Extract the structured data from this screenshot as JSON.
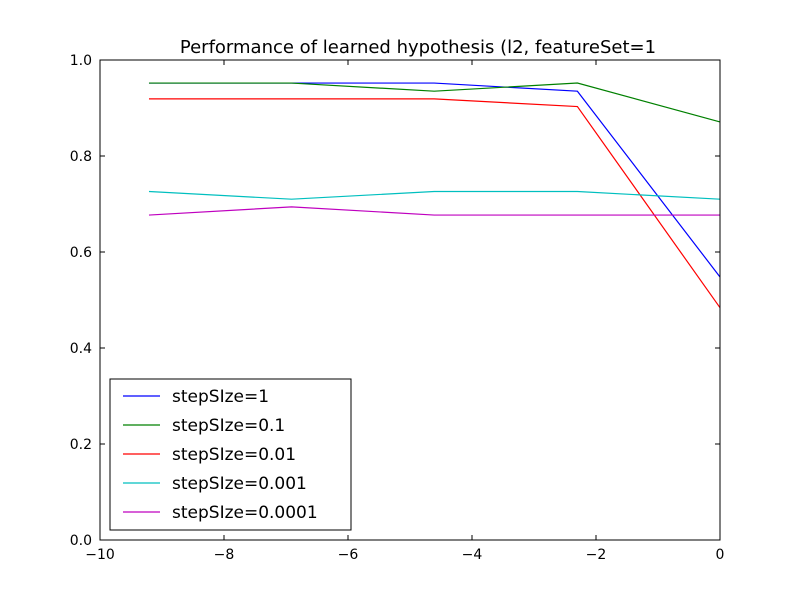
{
  "chart_data": {
    "type": "line",
    "title": "Performance of learned hypothesis (l2, featureSet=1",
    "xlabel": "",
    "ylabel": "",
    "xlim": [
      -10,
      0
    ],
    "ylim": [
      0.0,
      1.0
    ],
    "grid": false,
    "legend_position": "lower-left",
    "x": [
      -9.21,
      -6.91,
      -4.61,
      -2.3,
      0.0
    ],
    "xticks": [
      "−10",
      "−8",
      "−6",
      "−4",
      "−2",
      "0"
    ],
    "xtick_values": [
      -10,
      -8,
      -6,
      -4,
      -2,
      0
    ],
    "yticks": [
      "0.0",
      "0.2",
      "0.4",
      "0.6",
      "0.8",
      "1.0"
    ],
    "ytick_values": [
      0.0,
      0.2,
      0.4,
      0.6,
      0.8,
      1.0
    ],
    "series": [
      {
        "name": "stepSIze=1",
        "color": "#0000ff",
        "values": [
          0.952,
          0.952,
          0.952,
          0.935,
          0.548
        ]
      },
      {
        "name": "stepSIze=0.1",
        "color": "#008000",
        "values": [
          0.952,
          0.952,
          0.935,
          0.952,
          0.871
        ]
      },
      {
        "name": "stepSIze=0.01",
        "color": "#ff0000",
        "values": [
          0.919,
          0.919,
          0.919,
          0.903,
          0.484
        ]
      },
      {
        "name": "stepSIze=0.001",
        "color": "#00bfbf",
        "values": [
          0.726,
          0.71,
          0.726,
          0.726,
          0.71
        ]
      },
      {
        "name": "stepSIze=0.0001",
        "color": "#bf00bf",
        "values": [
          0.677,
          0.694,
          0.677,
          0.677,
          0.677
        ]
      }
    ]
  }
}
